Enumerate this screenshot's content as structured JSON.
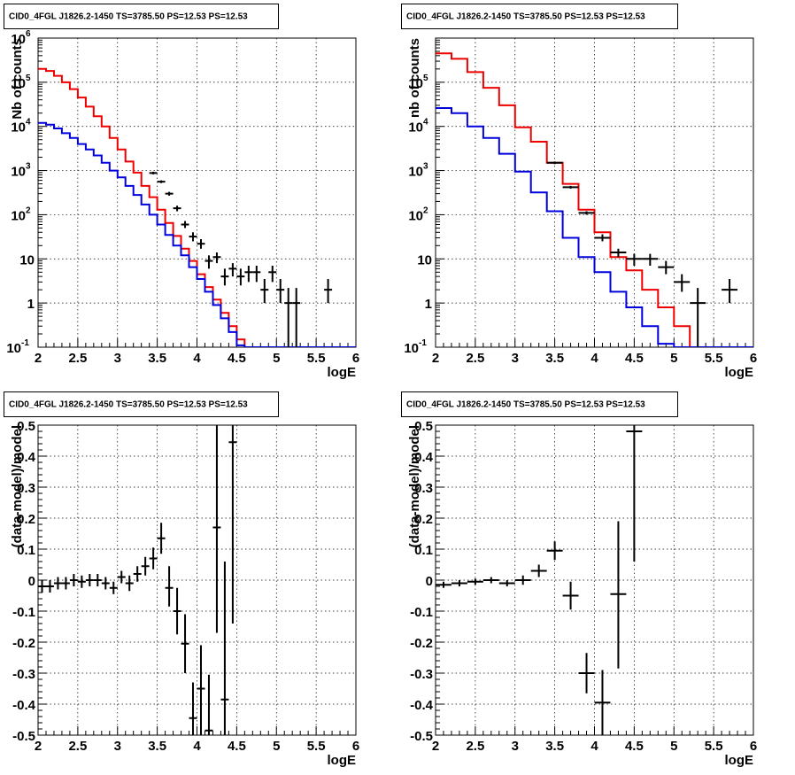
{
  "colors": {
    "data": "#000000",
    "total_model": "#ee0000",
    "component_model": "#0000dd",
    "grid": "#000000"
  },
  "chart_data": [
    {
      "type": "line",
      "title": "CID0_4FGL J1826.2-1450 TS=3785.50 PS=12.53 PS=12.53",
      "xlabel": "logE",
      "ylabel": "Nb of counts",
      "xlim": [
        2,
        6
      ],
      "ylim": [
        0.1,
        1000000
      ],
      "yscale": "log",
      "grid": true,
      "xticks": [
        "2",
        "2.5",
        "3",
        "3.5",
        "4",
        "4.5",
        "5",
        "5.5",
        "6"
      ],
      "yticks": [
        {
          "base": "10",
          "exp": "-1"
        },
        {
          "base": "1",
          "exp": ""
        },
        {
          "base": "10",
          "exp": ""
        },
        {
          "base": "10",
          "exp": "2"
        },
        {
          "base": "10",
          "exp": "3"
        },
        {
          "base": "10",
          "exp": "4"
        },
        {
          "base": "10",
          "exp": "5"
        },
        {
          "base": "10",
          "exp": "6"
        }
      ],
      "series": [
        {
          "style": "step-red",
          "edges_start": 2.0,
          "bin_width": 0.1,
          "values": [
            200000,
            180000,
            140000,
            100000,
            70000,
            45000,
            28000,
            17000,
            10000,
            5500,
            3000,
            1600,
            900,
            450,
            250,
            130,
            65,
            33,
            17,
            9,
            4.5,
            2.3,
            1.2,
            0.6,
            0.3,
            0.15,
            0.08,
            0.05,
            0.05,
            0.05,
            0.05,
            0.05,
            0.05,
            0.05,
            0.05,
            0.05,
            0.05,
            0.05,
            0.05,
            0.05
          ]
        },
        {
          "style": "step-blue",
          "edges_start": 2.0,
          "bin_width": 0.1,
          "values": [
            12000,
            11000,
            9000,
            7000,
            5500,
            4000,
            3000,
            2200,
            1500,
            1000,
            700,
            450,
            280,
            170,
            100,
            60,
            35,
            20,
            12,
            6.5,
            3.5,
            1.8,
            0.9,
            0.45,
            0.22,
            0.11,
            0.05,
            0.05,
            0.05,
            0.05,
            0.05,
            0.05,
            0.05,
            0.05,
            0.05,
            0.05,
            0.05,
            0.05,
            0.05,
            0.05
          ]
        },
        {
          "style": "points",
          "points": [
            {
              "x": 3.45,
              "y": 880,
              "xerr": 0.05,
              "ylo": 820,
              "yhi": 940
            },
            {
              "x": 3.55,
              "y": 560,
              "xerr": 0.05,
              "ylo": 520,
              "yhi": 600
            },
            {
              "x": 3.65,
              "y": 300,
              "xerr": 0.05,
              "ylo": 270,
              "yhi": 330
            },
            {
              "x": 3.75,
              "y": 140,
              "xerr": 0.05,
              "ylo": 120,
              "yhi": 160
            },
            {
              "x": 3.85,
              "y": 60,
              "xerr": 0.05,
              "ylo": 50,
              "yhi": 72
            },
            {
              "x": 3.95,
              "y": 32,
              "xerr": 0.05,
              "ylo": 25,
              "yhi": 40
            },
            {
              "x": 4.05,
              "y": 22,
              "xerr": 0.05,
              "ylo": 17,
              "yhi": 28
            },
            {
              "x": 4.15,
              "y": 9,
              "xerr": 0.05,
              "ylo": 6,
              "yhi": 12
            },
            {
              "x": 4.25,
              "y": 11,
              "xerr": 0.05,
              "ylo": 8,
              "yhi": 14
            },
            {
              "x": 4.35,
              "y": 4,
              "xerr": 0.05,
              "ylo": 2.5,
              "yhi": 6
            },
            {
              "x": 4.45,
              "y": 6,
              "xerr": 0.05,
              "ylo": 4,
              "yhi": 8
            },
            {
              "x": 4.55,
              "y": 4,
              "xerr": 0.05,
              "ylo": 2.5,
              "yhi": 6
            },
            {
              "x": 4.65,
              "y": 5,
              "xerr": 0.05,
              "ylo": 3,
              "yhi": 7
            },
            {
              "x": 4.75,
              "y": 5,
              "xerr": 0.05,
              "ylo": 3,
              "yhi": 7
            },
            {
              "x": 4.85,
              "y": 2,
              "xerr": 0.05,
              "ylo": 1,
              "yhi": 3.5
            },
            {
              "x": 4.95,
              "y": 5,
              "xerr": 0.05,
              "ylo": 3,
              "yhi": 7
            },
            {
              "x": 5.05,
              "y": 2,
              "xerr": 0.05,
              "ylo": 1,
              "yhi": 3.5
            },
            {
              "x": 5.15,
              "y": 1,
              "xerr": 0.05,
              "ylo": 0.1,
              "yhi": 2.2
            },
            {
              "x": 5.25,
              "y": 1,
              "xerr": 0.05,
              "ylo": 0.1,
              "yhi": 2.2
            },
            {
              "x": 5.65,
              "y": 2,
              "xerr": 0.05,
              "ylo": 1,
              "yhi": 3.5
            }
          ]
        }
      ]
    },
    {
      "type": "line",
      "title": "CID0_4FGL J1826.2-1450 TS=3785.50 PS=12.53 PS=12.53",
      "xlabel": "logE",
      "ylabel": "nb of counts",
      "xlim": [
        2,
        6
      ],
      "ylim": [
        0.1,
        1000000
      ],
      "yscale": "log",
      "grid": true,
      "xticks": [
        "2",
        "2.5",
        "3",
        "3.5",
        "4",
        "4.5",
        "5",
        "5.5",
        "6"
      ],
      "yticks": [
        {
          "base": "10",
          "exp": "-1"
        },
        {
          "base": "1",
          "exp": ""
        },
        {
          "base": "10",
          "exp": ""
        },
        {
          "base": "10",
          "exp": "2"
        },
        {
          "base": "10",
          "exp": "3"
        },
        {
          "base": "10",
          "exp": "4"
        },
        {
          "base": "10",
          "exp": "5"
        }
      ],
      "series": [
        {
          "style": "step-red",
          "edges_start": 2.0,
          "bin_width": 0.2,
          "values": [
            450000,
            340000,
            170000,
            75000,
            30000,
            9500,
            4500,
            1500,
            500,
            130,
            40,
            11,
            5.5,
            2,
            0.8,
            0.3,
            0.1,
            0.05,
            0.05,
            0.05
          ]
        },
        {
          "style": "step-blue",
          "edges_start": 2.0,
          "bin_width": 0.2,
          "values": [
            26000,
            20000,
            10000,
            5500,
            2400,
            950,
            320,
            120,
            30,
            11,
            5,
            1.8,
            0.8,
            0.3,
            0.12,
            0.05,
            0.05,
            0.05,
            0.05,
            0.05
          ]
        },
        {
          "style": "points",
          "points": [
            {
              "x": 3.5,
              "y": 1500,
              "xerr": 0.1,
              "ylo": 1400,
              "yhi": 1600
            },
            {
              "x": 3.7,
              "y": 420,
              "xerr": 0.1,
              "ylo": 390,
              "yhi": 450
            },
            {
              "x": 3.9,
              "y": 110,
              "xerr": 0.1,
              "ylo": 100,
              "yhi": 120
            },
            {
              "x": 4.1,
              "y": 30,
              "xerr": 0.1,
              "ylo": 25,
              "yhi": 36
            },
            {
              "x": 4.3,
              "y": 14,
              "xerr": 0.1,
              "ylo": 11,
              "yhi": 17
            },
            {
              "x": 4.5,
              "y": 10,
              "xerr": 0.1,
              "ylo": 7,
              "yhi": 13
            },
            {
              "x": 4.7,
              "y": 10,
              "xerr": 0.1,
              "ylo": 7,
              "yhi": 13
            },
            {
              "x": 4.9,
              "y": 6.5,
              "xerr": 0.1,
              "ylo": 4.5,
              "yhi": 9
            },
            {
              "x": 5.1,
              "y": 3,
              "xerr": 0.1,
              "ylo": 1.8,
              "yhi": 4.5
            },
            {
              "x": 5.3,
              "y": 1,
              "xerr": 0.1,
              "ylo": 0.1,
              "yhi": 2.2
            },
            {
              "x": 5.7,
              "y": 2,
              "xerr": 0.1,
              "ylo": 1,
              "yhi": 3.5
            }
          ]
        }
      ]
    },
    {
      "type": "scatter",
      "title": "CID0_4FGL J1826.2-1450 TS=3785.50 PS=12.53 PS=12.53",
      "xlabel": "logE",
      "ylabel": "(data-model)/model",
      "xlim": [
        2,
        6
      ],
      "ylim": [
        -0.5,
        0.5
      ],
      "yscale": "linear",
      "grid": true,
      "xticks": [
        "2",
        "2.5",
        "3",
        "3.5",
        "4",
        "4.5",
        "5",
        "5.5",
        "6"
      ],
      "yticks_linear": [
        "-0.5",
        "-0.4",
        "-0.3",
        "-0.2",
        "-0.1",
        "0",
        "0.1",
        "0.2",
        "0.3",
        "0.4",
        "0.5"
      ],
      "series": [
        {
          "style": "points",
          "points": [
            {
              "x": 2.05,
              "y": -0.02,
              "xerr": 0.05,
              "ylo": -0.04,
              "yhi": 0.0
            },
            {
              "x": 2.15,
              "y": -0.02,
              "xerr": 0.05,
              "ylo": -0.04,
              "yhi": 0.0
            },
            {
              "x": 2.25,
              "y": -0.01,
              "xerr": 0.05,
              "ylo": -0.03,
              "yhi": 0.01
            },
            {
              "x": 2.35,
              "y": -0.01,
              "xerr": 0.05,
              "ylo": -0.03,
              "yhi": 0.01
            },
            {
              "x": 2.45,
              "y": 0.0,
              "xerr": 0.05,
              "ylo": -0.02,
              "yhi": 0.02
            },
            {
              "x": 2.55,
              "y": -0.005,
              "xerr": 0.05,
              "ylo": -0.025,
              "yhi": 0.015
            },
            {
              "x": 2.65,
              "y": 0.0,
              "xerr": 0.05,
              "ylo": -0.02,
              "yhi": 0.02
            },
            {
              "x": 2.75,
              "y": 0.0,
              "xerr": 0.05,
              "ylo": -0.02,
              "yhi": 0.02
            },
            {
              "x": 2.85,
              "y": -0.01,
              "xerr": 0.05,
              "ylo": -0.03,
              "yhi": 0.01
            },
            {
              "x": 2.95,
              "y": -0.025,
              "xerr": 0.05,
              "ylo": -0.045,
              "yhi": -0.005
            },
            {
              "x": 3.05,
              "y": 0.01,
              "xerr": 0.05,
              "ylo": -0.01,
              "yhi": 0.03
            },
            {
              "x": 3.15,
              "y": -0.01,
              "xerr": 0.05,
              "ylo": -0.035,
              "yhi": 0.015
            },
            {
              "x": 3.25,
              "y": 0.02,
              "xerr": 0.05,
              "ylo": -0.005,
              "yhi": 0.045
            },
            {
              "x": 3.35,
              "y": 0.045,
              "xerr": 0.05,
              "ylo": 0.015,
              "yhi": 0.075
            },
            {
              "x": 3.45,
              "y": 0.07,
              "xerr": 0.05,
              "ylo": 0.035,
              "yhi": 0.105
            },
            {
              "x": 3.55,
              "y": 0.135,
              "xerr": 0.05,
              "ylo": 0.085,
              "yhi": 0.185
            },
            {
              "x": 3.65,
              "y": -0.025,
              "xerr": 0.05,
              "ylo": -0.085,
              "yhi": 0.045
            },
            {
              "x": 3.75,
              "y": -0.1,
              "xerr": 0.05,
              "ylo": -0.175,
              "yhi": -0.025
            },
            {
              "x": 3.85,
              "y": -0.205,
              "xerr": 0.05,
              "ylo": -0.3,
              "yhi": -0.11
            },
            {
              "x": 3.95,
              "y": -0.445,
              "xerr": 0.05,
              "ylo": -0.5,
              "yhi": -0.33
            },
            {
              "x": 4.05,
              "y": -0.35,
              "xerr": 0.05,
              "ylo": -0.5,
              "yhi": -0.21
            },
            {
              "x": 4.15,
              "y": -0.485,
              "xerr": 0.05,
              "ylo": -0.5,
              "yhi": -0.305
            },
            {
              "x": 4.25,
              "y": 0.17,
              "xerr": 0.05,
              "ylo": -0.17,
              "yhi": 0.5
            },
            {
              "x": 4.35,
              "y": -0.385,
              "xerr": 0.05,
              "ylo": -0.5,
              "yhi": 0.06
            },
            {
              "x": 4.45,
              "y": 0.445,
              "xerr": 0.05,
              "ylo": -0.14,
              "yhi": 0.5
            }
          ]
        }
      ]
    },
    {
      "type": "scatter",
      "title": "CID0_4FGL J1826.2-1450 TS=3785.50 PS=12.53 PS=12.53",
      "xlabel": "logE",
      "ylabel": "(data-model)/model",
      "xlim": [
        2,
        6
      ],
      "ylim": [
        -0.5,
        0.5
      ],
      "yscale": "linear",
      "grid": true,
      "xticks": [
        "2",
        "2.5",
        "3",
        "3.5",
        "4",
        "4.5",
        "5",
        "5.5",
        "6"
      ],
      "yticks_linear": [
        "-0.5",
        "-0.4",
        "-0.3",
        "-0.2",
        "-0.1",
        "0",
        "0.1",
        "0.2",
        "0.3",
        "0.4",
        "0.5"
      ],
      "series": [
        {
          "style": "points",
          "points": [
            {
              "x": 2.1,
              "y": -0.015,
              "xerr": 0.1,
              "ylo": -0.025,
              "yhi": -0.005
            },
            {
              "x": 2.3,
              "y": -0.01,
              "xerr": 0.1,
              "ylo": -0.02,
              "yhi": 0.0
            },
            {
              "x": 2.5,
              "y": -0.005,
              "xerr": 0.1,
              "ylo": -0.015,
              "yhi": 0.005
            },
            {
              "x": 2.7,
              "y": 0.0,
              "xerr": 0.1,
              "ylo": -0.01,
              "yhi": 0.01
            },
            {
              "x": 2.9,
              "y": -0.01,
              "xerr": 0.1,
              "ylo": -0.02,
              "yhi": 0.0
            },
            {
              "x": 3.1,
              "y": 0.0,
              "xerr": 0.1,
              "ylo": -0.015,
              "yhi": 0.015
            },
            {
              "x": 3.3,
              "y": 0.03,
              "xerr": 0.1,
              "ylo": 0.01,
              "yhi": 0.05
            },
            {
              "x": 3.5,
              "y": 0.095,
              "xerr": 0.1,
              "ylo": 0.065,
              "yhi": 0.125
            },
            {
              "x": 3.7,
              "y": -0.05,
              "xerr": 0.1,
              "ylo": -0.095,
              "yhi": -0.005
            },
            {
              "x": 3.9,
              "y": -0.3,
              "xerr": 0.1,
              "ylo": -0.365,
              "yhi": -0.235
            },
            {
              "x": 4.1,
              "y": -0.395,
              "xerr": 0.1,
              "ylo": -0.5,
              "yhi": -0.29
            },
            {
              "x": 4.3,
              "y": -0.045,
              "xerr": 0.1,
              "ylo": -0.285,
              "yhi": 0.19
            },
            {
              "x": 4.5,
              "y": 0.48,
              "xerr": 0.1,
              "ylo": 0.06,
              "yhi": 0.5
            }
          ]
        }
      ]
    }
  ]
}
